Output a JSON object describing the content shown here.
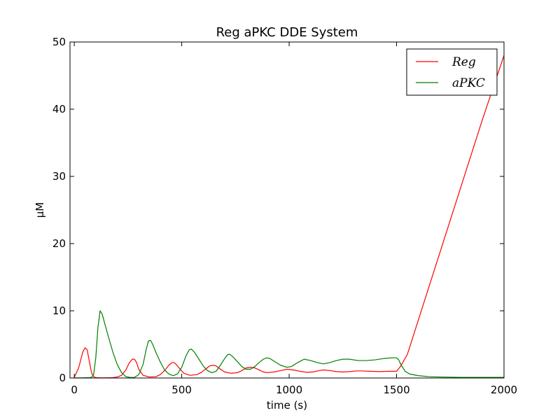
{
  "chart_data": {
    "type": "line",
    "title": "Reg aPKC DDE System",
    "xlabel": "time (s)",
    "ylabel": "μM",
    "xlim": [
      -20,
      2000
    ],
    "ylim": [
      0,
      50
    ],
    "xticks": [
      0,
      500,
      1000,
      1500,
      2000
    ],
    "xtick_labels": [
      "0",
      "500",
      "1000",
      "1500",
      "2000"
    ],
    "yticks": [
      0,
      10,
      20,
      30,
      40,
      50
    ],
    "ytick_labels": [
      "0",
      "10",
      "20",
      "30",
      "40",
      "50"
    ],
    "grid": false,
    "legend_position": "top-right",
    "series": [
      {
        "name": "Reg",
        "color": "#ff0000",
        "x": [
          0,
          20,
          40,
          50,
          60,
          70,
          80,
          90,
          100,
          120,
          150,
          180,
          200,
          220,
          240,
          255,
          270,
          280,
          290,
          300,
          320,
          350,
          380,
          400,
          420,
          440,
          455,
          465,
          475,
          490,
          510,
          540,
          570,
          590,
          610,
          630,
          645,
          660,
          680,
          700,
          730,
          760,
          780,
          800,
          820,
          840,
          860,
          880,
          900,
          930,
          960,
          990,
          1020,
          1050,
          1080,
          1110,
          1140,
          1160,
          1190,
          1220,
          1250,
          1280,
          1310,
          1340,
          1380,
          1420,
          1460,
          1500,
          1520,
          1550,
          1600,
          1700,
          1800,
          1900,
          2000
        ],
        "y": [
          0.1,
          1.5,
          3.9,
          4.5,
          4.2,
          2.5,
          0.8,
          0.2,
          0.05,
          0.03,
          0.03,
          0.05,
          0.15,
          0.4,
          1.2,
          2.2,
          2.8,
          2.8,
          2.3,
          1.3,
          0.4,
          0.15,
          0.2,
          0.5,
          1.1,
          1.9,
          2.3,
          2.3,
          2.0,
          1.4,
          0.7,
          0.4,
          0.5,
          0.8,
          1.3,
          1.8,
          1.9,
          1.8,
          1.3,
          0.9,
          0.7,
          0.8,
          1.1,
          1.5,
          1.6,
          1.5,
          1.2,
          0.9,
          0.8,
          0.9,
          1.1,
          1.3,
          1.2,
          1.0,
          0.85,
          0.9,
          1.1,
          1.2,
          1.1,
          0.95,
          0.9,
          0.95,
          1.05,
          1.05,
          1.0,
          0.95,
          1.0,
          1.0,
          1.8,
          3.5,
          8.5,
          18.5,
          28.5,
          38.5,
          48.0
        ]
      },
      {
        "name": "aPKC",
        "color": "#008000",
        "x": [
          0,
          40,
          70,
          80,
          90,
          100,
          110,
          120,
          130,
          140,
          160,
          180,
          200,
          220,
          240,
          260,
          280,
          300,
          320,
          335,
          345,
          355,
          365,
          380,
          400,
          420,
          440,
          460,
          480,
          500,
          520,
          535,
          545,
          560,
          580,
          600,
          620,
          640,
          660,
          680,
          700,
          715,
          725,
          740,
          760,
          780,
          800,
          820,
          840,
          860,
          880,
          895,
          910,
          930,
          960,
          990,
          1010,
          1040,
          1070,
          1100,
          1130,
          1160,
          1190,
          1220,
          1250,
          1280,
          1320,
          1360,
          1400,
          1440,
          1480,
          1500,
          1510,
          1520,
          1540,
          1560,
          1600,
          1650,
          1700,
          1800,
          1900,
          2000
        ],
        "y": [
          0.02,
          0.03,
          0.05,
          0.1,
          0.5,
          3.0,
          7.5,
          10.0,
          9.5,
          8.3,
          6.0,
          3.8,
          2.0,
          0.8,
          0.2,
          0.08,
          0.1,
          0.5,
          2.0,
          4.3,
          5.5,
          5.6,
          5.0,
          3.8,
          2.4,
          1.2,
          0.6,
          0.35,
          0.6,
          1.6,
          3.3,
          4.2,
          4.3,
          3.8,
          2.8,
          1.8,
          1.1,
          0.8,
          1.0,
          1.9,
          2.9,
          3.5,
          3.5,
          3.1,
          2.4,
          1.7,
          1.3,
          1.3,
          1.7,
          2.3,
          2.8,
          3.0,
          2.9,
          2.5,
          1.9,
          1.6,
          1.7,
          2.3,
          2.8,
          2.6,
          2.3,
          2.1,
          2.3,
          2.6,
          2.8,
          2.8,
          2.6,
          2.6,
          2.7,
          2.9,
          3.0,
          3.0,
          2.7,
          2.0,
          1.0,
          0.6,
          0.35,
          0.2,
          0.15,
          0.1,
          0.1,
          0.1
        ]
      }
    ]
  }
}
